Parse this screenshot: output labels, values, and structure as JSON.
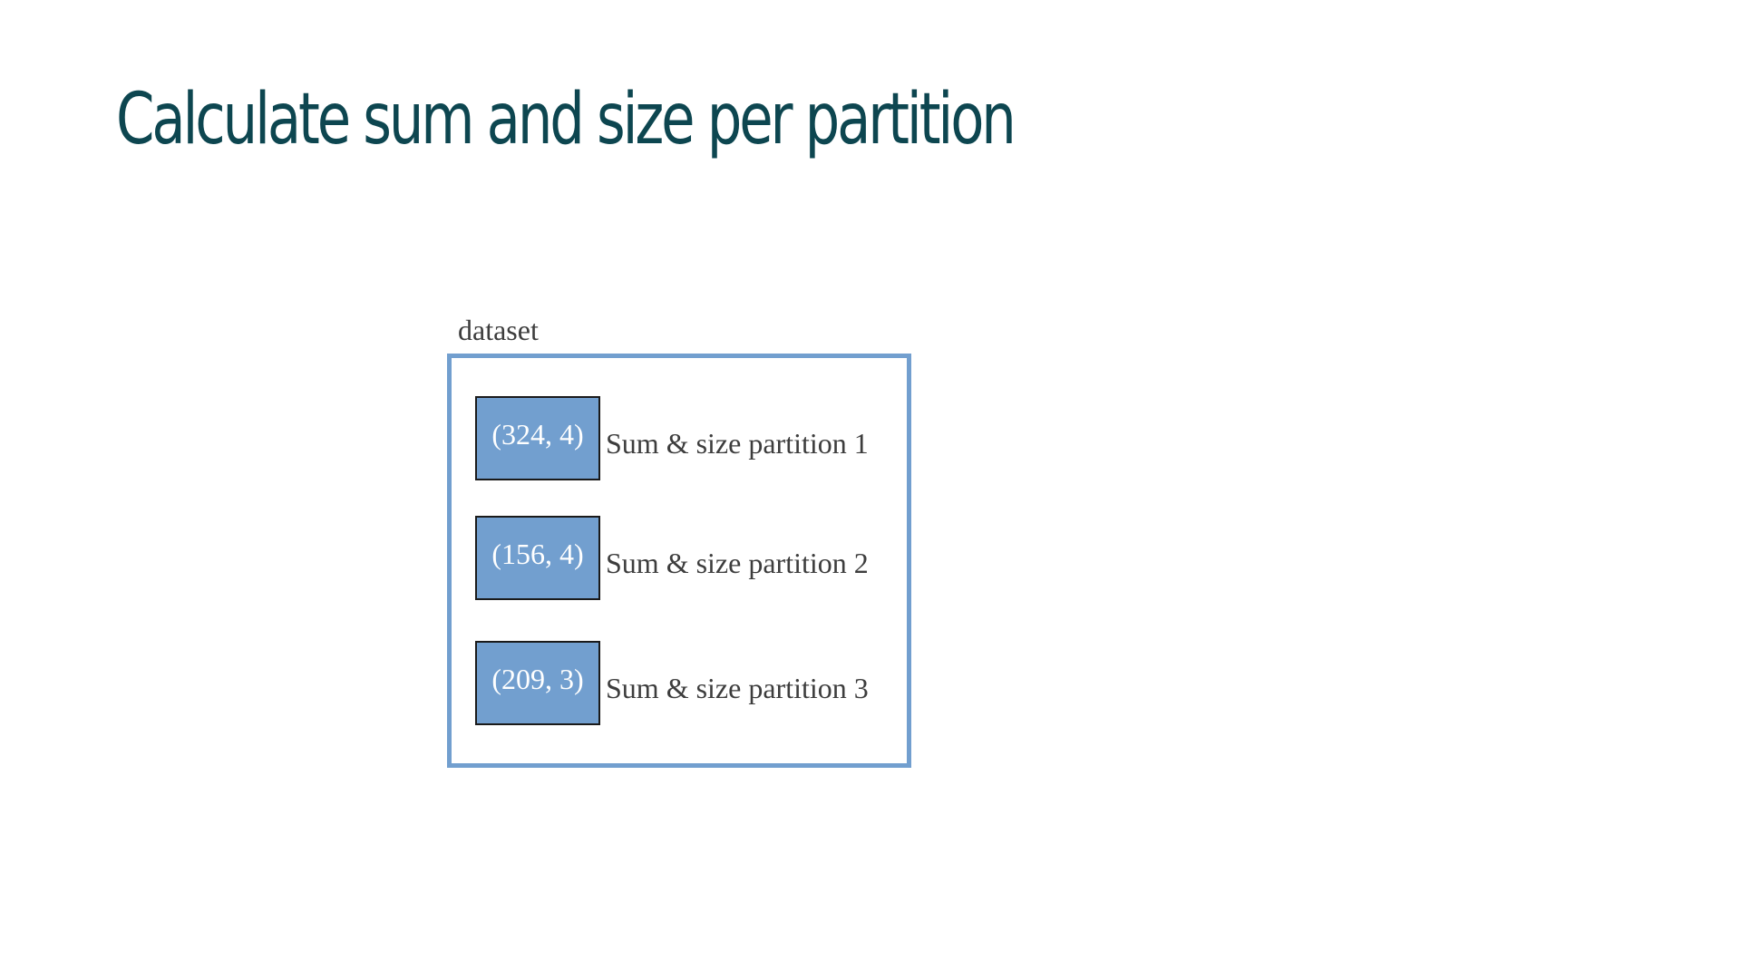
{
  "title": "Calculate sum and size per partition",
  "dataset": {
    "label": "dataset",
    "partitions": [
      {
        "value": "(324, 4)",
        "label": "Sum & size partition 1"
      },
      {
        "value": "(156, 4)",
        "label": "Sum & size partition 2"
      },
      {
        "value": "(209, 3)",
        "label": "Sum & size partition 3"
      }
    ]
  },
  "colors": {
    "title": "#0d4650",
    "accent": "#729fcf",
    "text": "#3d3d3d",
    "box_text": "#ffffff"
  }
}
